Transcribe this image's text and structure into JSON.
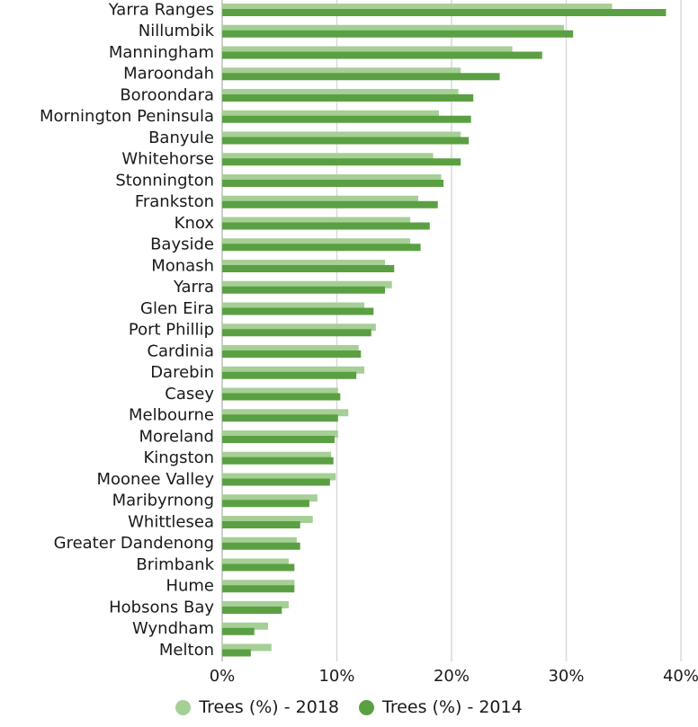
{
  "chart_data": {
    "type": "bar",
    "orientation": "horizontal",
    "categories": [
      "Yarra Ranges",
      "Nillumbik",
      "Manningham",
      "Maroondah",
      "Boroondara",
      "Mornington Peninsula",
      "Banyule",
      "Whitehorse",
      "Stonnington",
      "Frankston",
      "Knox",
      "Bayside",
      "Monash",
      "Yarra",
      "Glen Eira",
      "Port Phillip",
      "Cardinia",
      "Darebin",
      "Casey",
      "Melbourne",
      "Moreland",
      "Kingston",
      "Moonee Valley",
      "Maribyrnong",
      "Whittlesea",
      "Greater Dandenong",
      "Brimbank",
      "Hume",
      "Hobsons Bay",
      "Wyndham",
      "Melton"
    ],
    "series": [
      {
        "name": "Trees (%) - 2018",
        "color": "#a6cf96",
        "values": [
          34.0,
          29.8,
          25.3,
          20.8,
          20.6,
          18.9,
          20.8,
          18.4,
          19.1,
          17.1,
          16.4,
          16.4,
          14.2,
          14.8,
          12.4,
          13.4,
          11.9,
          12.4,
          10.1,
          11.0,
          10.1,
          9.5,
          9.9,
          8.3,
          7.9,
          6.5,
          5.8,
          6.3,
          5.8,
          4.0,
          4.3
        ]
      },
      {
        "name": "Trees (%) - 2014",
        "color": "#5aa042",
        "values": [
          38.7,
          30.6,
          27.9,
          24.2,
          21.9,
          21.7,
          21.5,
          20.8,
          19.3,
          18.8,
          18.1,
          17.3,
          15.0,
          14.2,
          13.2,
          13.0,
          12.1,
          11.7,
          10.3,
          10.1,
          9.8,
          9.7,
          9.4,
          7.6,
          6.8,
          6.8,
          6.3,
          6.3,
          5.2,
          2.8,
          2.5
        ]
      }
    ],
    "xlim": [
      0,
      40
    ],
    "xticks": [
      "0%",
      "10%",
      "20%",
      "30%",
      "40%"
    ],
    "grid": true,
    "legend_position": "bottom"
  }
}
